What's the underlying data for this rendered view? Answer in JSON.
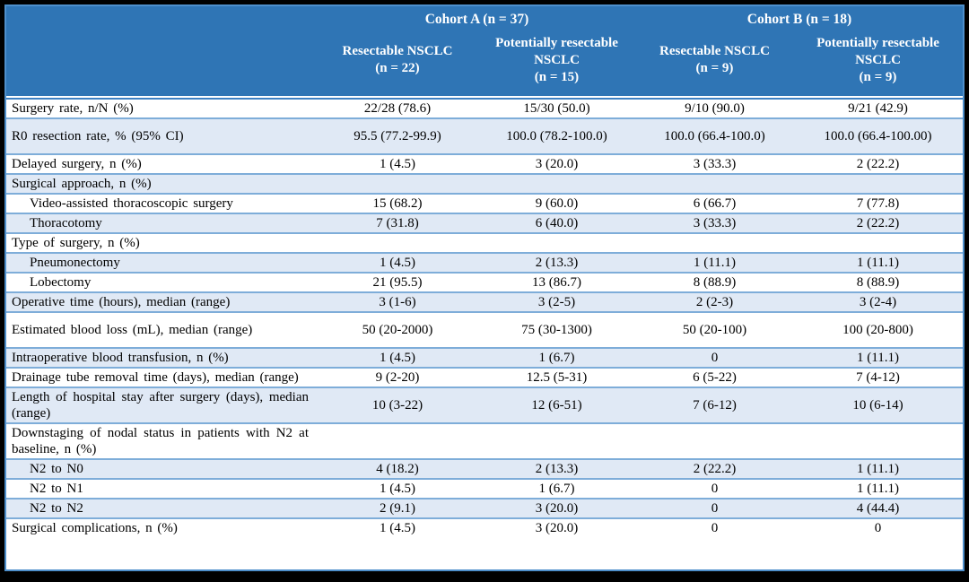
{
  "colors": {
    "page_background": "#000000",
    "header_background": "#2F75B5",
    "header_text": "#FFFFFF",
    "band_row_background": "#E0E9F5",
    "row_border": "#7EADD9",
    "outer_border": "#4E8FCB",
    "body_text": "#000000"
  },
  "table": {
    "cohorts": [
      {
        "label": "Cohort A (n = 37)"
      },
      {
        "label": "Cohort B (n = 18)"
      }
    ],
    "subheaders": [
      {
        "name": "Resectable NSCLC",
        "n": "(n = 22)"
      },
      {
        "name": "Potentially resectable NSCLC",
        "n": "(n = 15)"
      },
      {
        "name": "Resectable NSCLC",
        "n": "(n = 9)"
      },
      {
        "name": "Potentially resectable NSCLC",
        "n": "(n = 9)"
      }
    ],
    "rows": [
      {
        "label": "Surgery rate, n/N (%)",
        "indent": false,
        "tall": false,
        "values": [
          "22/28 (78.6)",
          "15/30 (50.0)",
          "9/10 (90.0)",
          "9/21 (42.9)"
        ]
      },
      {
        "label": "R0 resection rate, % (95% CI)",
        "indent": false,
        "tall": true,
        "values": [
          "95.5 (77.2-99.9)",
          "100.0 (78.2-100.0)",
          "100.0 (66.4-100.0)",
          "100.0 (66.4-100.00)"
        ]
      },
      {
        "label": "Delayed surgery, n (%)",
        "indent": false,
        "tall": false,
        "values": [
          "1 (4.5)",
          "3 (20.0)",
          "3 (33.3)",
          "2 (22.2)"
        ]
      },
      {
        "label": "Surgical approach, n (%)",
        "indent": false,
        "tall": false,
        "values": [
          "",
          "",
          "",
          ""
        ]
      },
      {
        "label": "Video-assisted thoracoscopic surgery",
        "indent": true,
        "tall": false,
        "values": [
          "15 (68.2)",
          "9 (60.0)",
          "6 (66.7)",
          "7 (77.8)"
        ]
      },
      {
        "label": "Thoracotomy",
        "indent": true,
        "tall": false,
        "values": [
          "7 (31.8)",
          "6 (40.0)",
          "3 (33.3)",
          "2 (22.2)"
        ]
      },
      {
        "label": "Type of surgery, n (%)",
        "indent": false,
        "tall": false,
        "values": [
          "",
          "",
          "",
          ""
        ]
      },
      {
        "label": "Pneumonectomy",
        "indent": true,
        "tall": false,
        "values": [
          "1 (4.5)",
          "2 (13.3)",
          "1 (11.1)",
          "1 (11.1)"
        ]
      },
      {
        "label": "Lobectomy",
        "indent": true,
        "tall": false,
        "values": [
          "21 (95.5)",
          "13 (86.7)",
          "8 (88.9)",
          "8 (88.9)"
        ]
      },
      {
        "label": "Operative time (hours), median (range)",
        "indent": false,
        "tall": false,
        "values": [
          "3 (1-6)",
          "3 (2-5)",
          "2 (2-3)",
          "3 (2-4)"
        ]
      },
      {
        "label": "Estimated blood loss (mL), median (range)",
        "indent": false,
        "tall": true,
        "values": [
          "50 (20-2000)",
          "75 (30-1300)",
          "50 (20-100)",
          "100 (20-800)"
        ]
      },
      {
        "label": "Intraoperative blood transfusion, n (%)",
        "indent": false,
        "tall": false,
        "values": [
          "1 (4.5)",
          "1 (6.7)",
          "0",
          "1 (11.1)"
        ]
      },
      {
        "label": "Drainage tube removal time (days), median (range)",
        "indent": false,
        "tall": false,
        "values": [
          "9 (2-20)",
          "12.5 (5-31)",
          "6 (5-22)",
          "7 (4-12)"
        ]
      },
      {
        "label": "Length of hospital stay after surgery (days), median (range)",
        "indent": false,
        "tall": false,
        "values": [
          "10 (3-22)",
          "12 (6-51)",
          "7 (6-12)",
          "10 (6-14)"
        ]
      },
      {
        "label": "Downstaging of nodal status in patients with N2 at baseline, n (%)",
        "indent": false,
        "tall": false,
        "values": [
          "",
          "",
          "",
          ""
        ]
      },
      {
        "label": "N2 to N0",
        "indent": true,
        "tall": false,
        "values": [
          "4 (18.2)",
          "2 (13.3)",
          "2 (22.2)",
          "1 (11.1)"
        ]
      },
      {
        "label": "N2 to N1",
        "indent": true,
        "tall": false,
        "values": [
          "1 (4.5)",
          "1 (6.7)",
          "0",
          "1 (11.1)"
        ]
      },
      {
        "label": "N2 to N2",
        "indent": true,
        "tall": false,
        "values": [
          "2 (9.1)",
          "3 (20.0)",
          "0",
          "4 (44.4)"
        ]
      },
      {
        "label": "Surgical complications, n (%)",
        "indent": false,
        "tall": false,
        "values": [
          "1 (4.5)",
          "3 (20.0)",
          "0",
          "0"
        ]
      }
    ]
  }
}
